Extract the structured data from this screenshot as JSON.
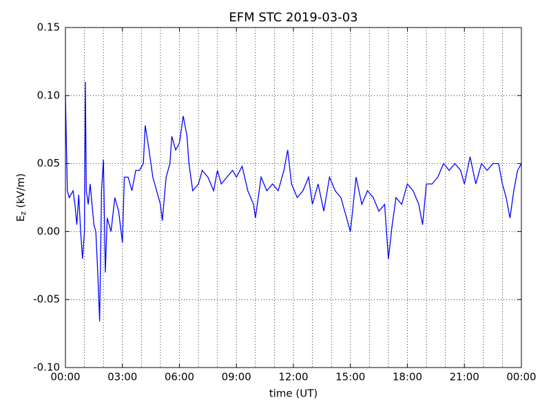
{
  "chart_data": {
    "type": "line",
    "title": "EFM STC    2019-03-03",
    "xlabel": "time (UT)",
    "ylabel": {
      "base": "E",
      "sub": "z",
      "unit": " (kV/m)"
    },
    "x": [
      0.0,
      0.1,
      0.2,
      0.4,
      0.5,
      0.6,
      0.7,
      0.8,
      0.9,
      1.0,
      1.05,
      1.1,
      1.2,
      1.3,
      1.4,
      1.5,
      1.6,
      1.7,
      1.8,
      1.9,
      2.0,
      2.1,
      2.2,
      2.4,
      2.6,
      2.8,
      3.0,
      3.1,
      3.3,
      3.5,
      3.7,
      3.9,
      4.1,
      4.2,
      4.4,
      4.6,
      4.8,
      5.0,
      5.1,
      5.3,
      5.5,
      5.6,
      5.8,
      6.0,
      6.2,
      6.4,
      6.5,
      6.7,
      7.0,
      7.2,
      7.5,
      7.8,
      8.0,
      8.2,
      8.5,
      8.8,
      9.0,
      9.3,
      9.6,
      9.9,
      10.0,
      10.3,
      10.6,
      10.9,
      11.2,
      11.5,
      11.7,
      11.9,
      12.2,
      12.5,
      12.8,
      13.0,
      13.3,
      13.6,
      13.9,
      14.2,
      14.5,
      14.8,
      15.0,
      15.3,
      15.6,
      15.9,
      16.2,
      16.5,
      16.8,
      17.0,
      17.2,
      17.4,
      17.7,
      18.0,
      18.3,
      18.6,
      18.8,
      19.0,
      19.3,
      19.6,
      19.9,
      20.2,
      20.5,
      20.8,
      21.0,
      21.3,
      21.6,
      21.9,
      22.2,
      22.5,
      22.8,
      23.0,
      23.2,
      23.4,
      23.6,
      23.8,
      24.0
    ],
    "series": [
      {
        "name": "Ez",
        "color": "#0000ff",
        "values": [
          0.1,
          0.03,
          0.025,
          0.03,
          0.02,
          0.005,
          0.027,
          0.0,
          -0.02,
          0.0,
          0.11,
          0.03,
          0.02,
          0.035,
          0.02,
          0.005,
          0.0,
          -0.03,
          -0.066,
          0.03,
          0.053,
          -0.03,
          0.01,
          0.0,
          0.025,
          0.015,
          -0.008,
          0.04,
          0.04,
          0.03,
          0.045,
          0.045,
          0.05,
          0.078,
          0.06,
          0.04,
          0.03,
          0.02,
          0.008,
          0.04,
          0.05,
          0.07,
          0.06,
          0.065,
          0.085,
          0.07,
          0.05,
          0.03,
          0.035,
          0.045,
          0.04,
          0.03,
          0.045,
          0.035,
          0.04,
          0.045,
          0.04,
          0.048,
          0.03,
          0.02,
          0.01,
          0.04,
          0.03,
          0.035,
          0.03,
          0.045,
          0.06,
          0.035,
          0.025,
          0.03,
          0.04,
          0.02,
          0.035,
          0.015,
          0.04,
          0.03,
          0.025,
          0.01,
          0.0,
          0.04,
          0.02,
          0.03,
          0.025,
          0.015,
          0.02,
          -0.02,
          0.005,
          0.025,
          0.02,
          0.035,
          0.03,
          0.02,
          0.005,
          0.035,
          0.035,
          0.04,
          0.05,
          0.045,
          0.05,
          0.045,
          0.035,
          0.055,
          0.035,
          0.05,
          0.045,
          0.05,
          0.05,
          0.035,
          0.025,
          0.01,
          0.03,
          0.045,
          0.05
        ]
      }
    ],
    "xlim": [
      0,
      24
    ],
    "xticks": [
      {
        "value": 0,
        "label": "00:00"
      },
      {
        "value": 3,
        "label": "03:00"
      },
      {
        "value": 6,
        "label": "06:00"
      },
      {
        "value": 9,
        "label": "09:00"
      },
      {
        "value": 12,
        "label": "12:00"
      },
      {
        "value": 15,
        "label": "15:00"
      },
      {
        "value": 18,
        "label": "18:00"
      },
      {
        "value": 21,
        "label": "21:00"
      },
      {
        "value": 24,
        "label": "00:00"
      }
    ],
    "xminorticks": [
      1,
      2,
      4,
      5,
      7,
      8,
      10,
      11,
      13,
      14,
      16,
      17,
      19,
      20,
      22,
      23
    ],
    "ylim": [
      -0.1,
      0.15
    ],
    "yticks": [
      -0.05,
      {
        "value": -0.1,
        "label": "-0.10"
      },
      {
        "value": 0,
        "label": "0.00"
      },
      0.05,
      {
        "value": 0.1,
        "label": "0.10"
      },
      0.15
    ],
    "grid": true
  }
}
